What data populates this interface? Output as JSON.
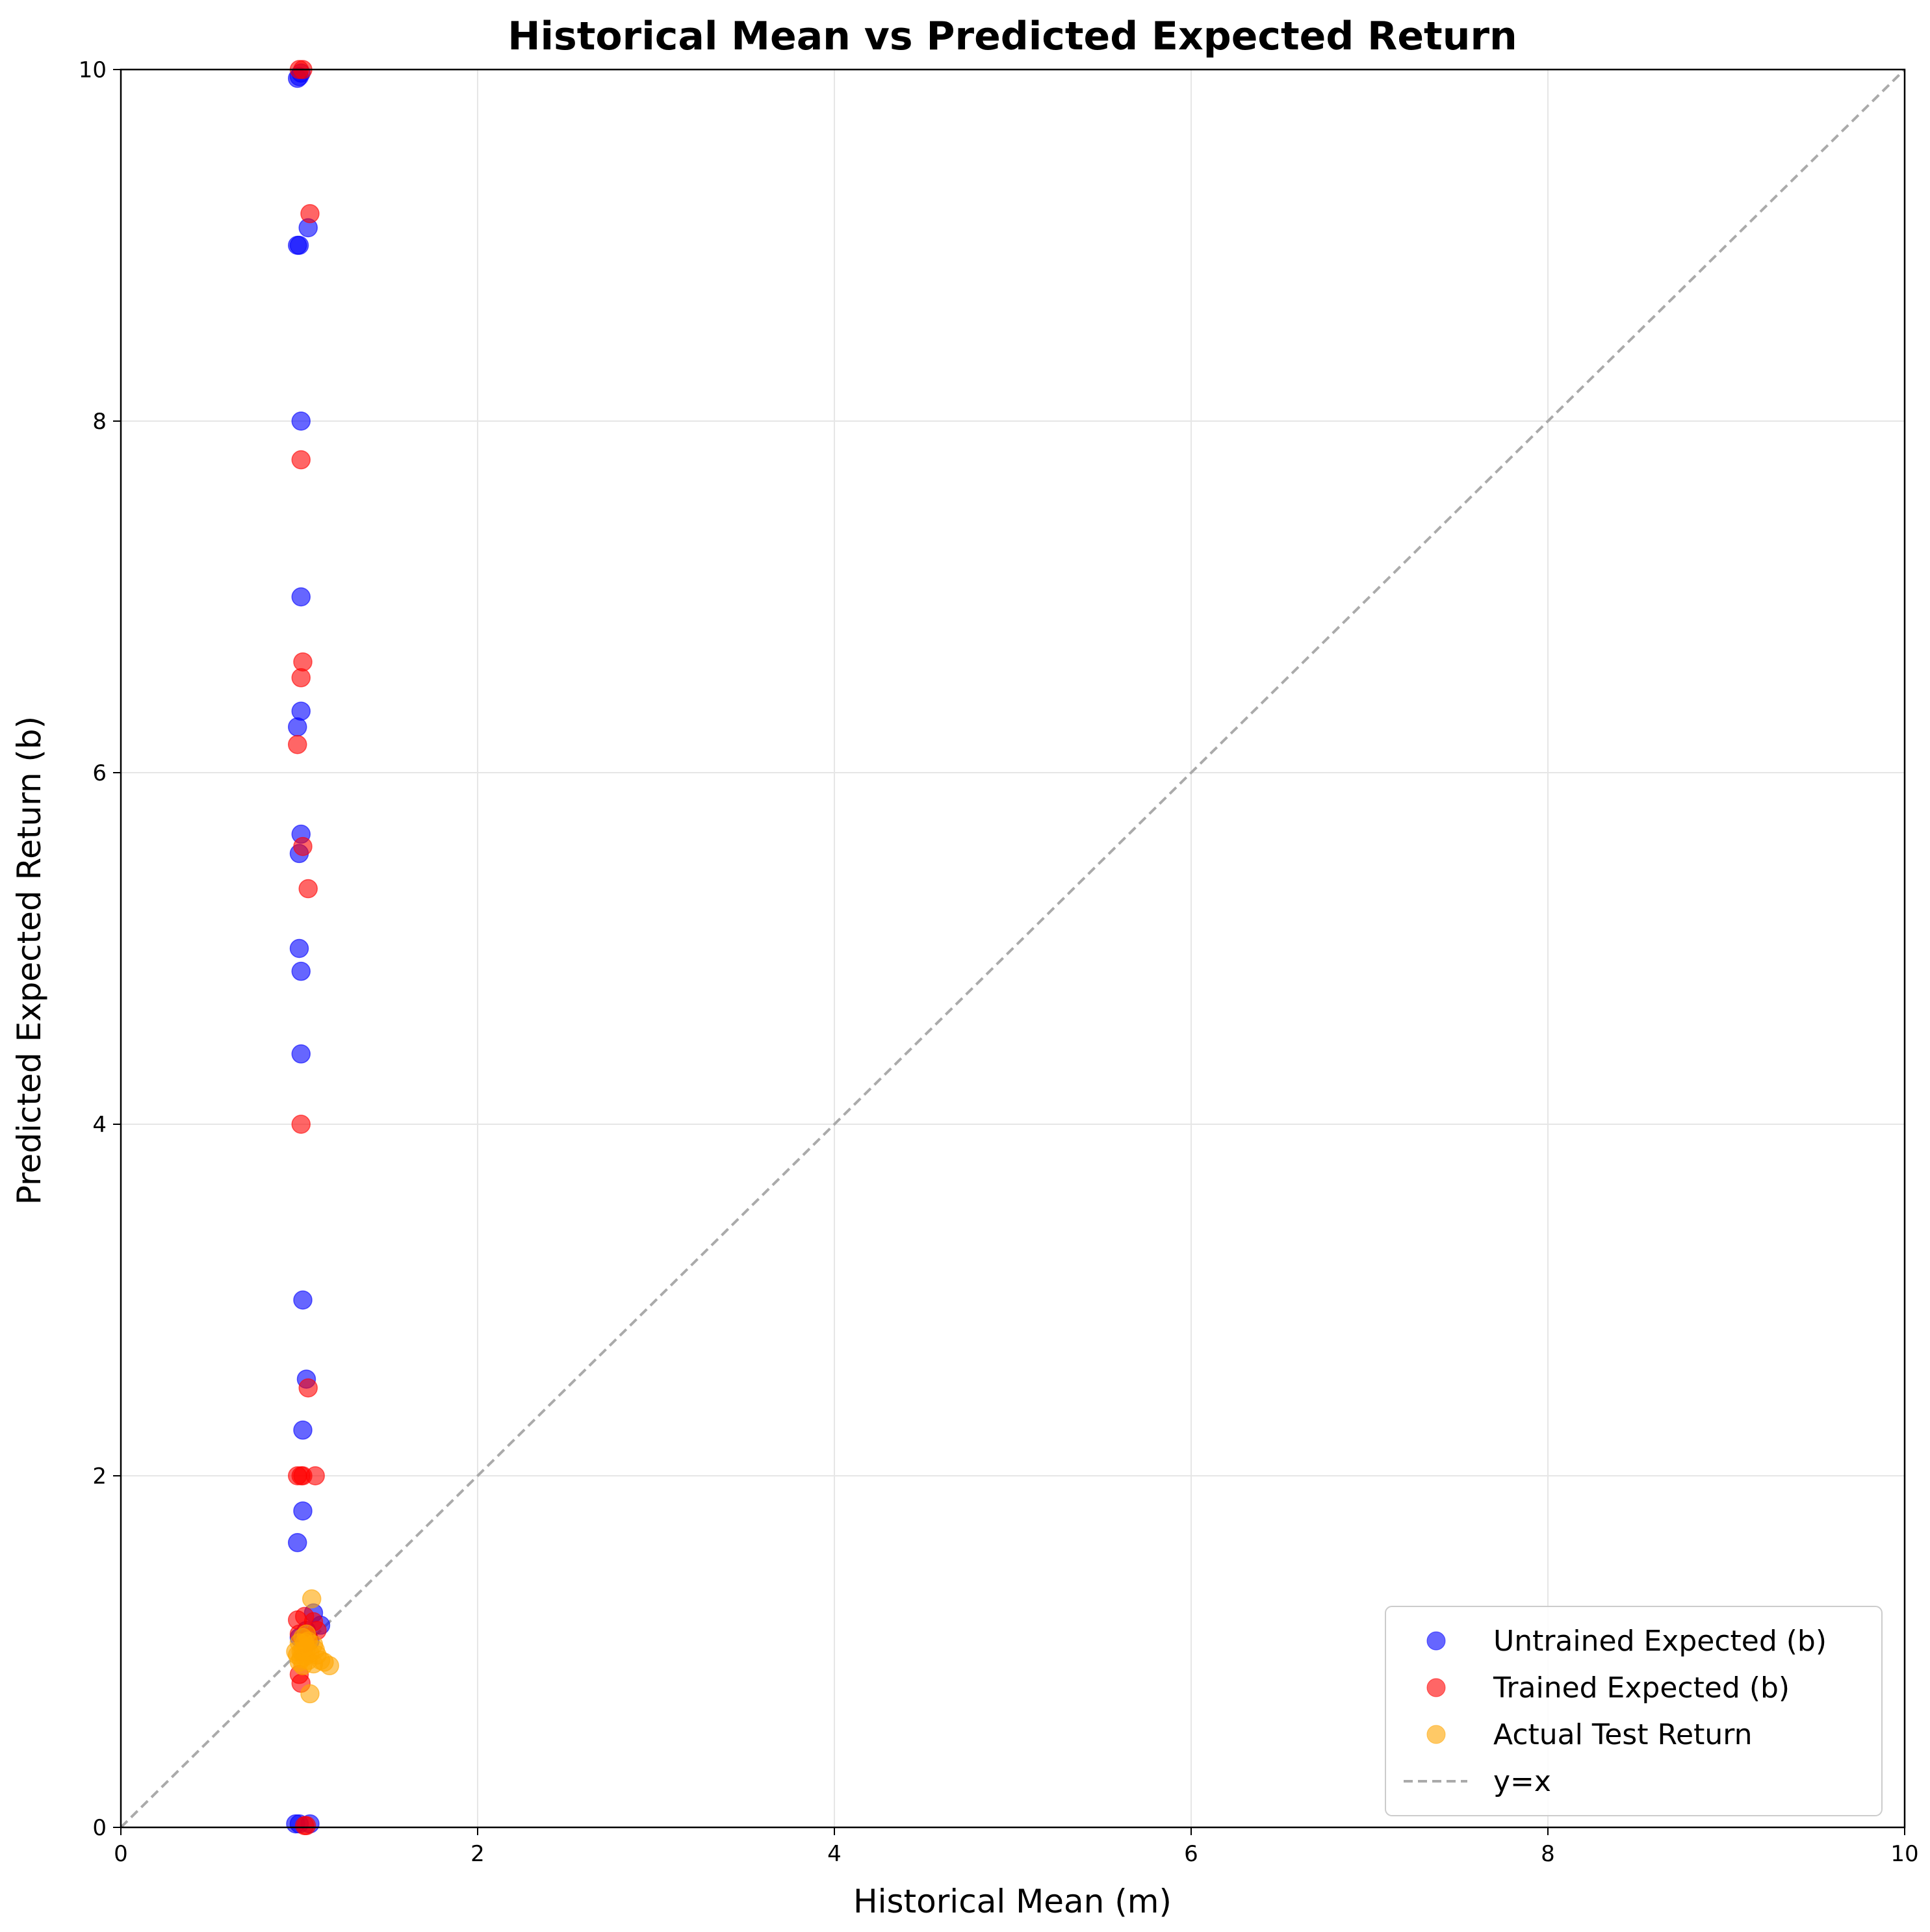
{
  "chart_data": {
    "type": "scatter",
    "title": "Historical Mean vs Predicted Expected Return",
    "xlabel": "Historical Mean (m)",
    "ylabel": "Predicted Expected Return (b)",
    "xlim": [
      0,
      10
    ],
    "ylim": [
      0,
      10
    ],
    "xticks": [
      0,
      2,
      4,
      6,
      8,
      10
    ],
    "yticks": [
      0,
      2,
      4,
      6,
      8,
      10
    ],
    "grid": true,
    "legend_position": "lower-right",
    "reference_line": {
      "name": "y=x",
      "style": "dashed",
      "color": "#aaaaaa",
      "x": [
        0,
        10
      ],
      "y": [
        0,
        10
      ]
    },
    "series": [
      {
        "name": "Untrained Expected (b)",
        "color": "#0000ff",
        "points": [
          [
            0.99,
            9.95
          ],
          [
            1.0,
            9.96
          ],
          [
            1.01,
            9.98
          ],
          [
            0.99,
            9.0
          ],
          [
            1.0,
            9.0
          ],
          [
            1.05,
            9.1
          ],
          [
            1.01,
            8.0
          ],
          [
            1.01,
            7.0
          ],
          [
            1.01,
            6.35
          ],
          [
            0.99,
            6.26
          ],
          [
            1.01,
            5.65
          ],
          [
            1.0,
            5.54
          ],
          [
            1.0,
            5.0
          ],
          [
            1.01,
            4.87
          ],
          [
            1.01,
            4.4
          ],
          [
            1.02,
            3.0
          ],
          [
            1.04,
            2.55
          ],
          [
            1.02,
            2.26
          ],
          [
            1.02,
            1.8
          ],
          [
            0.99,
            1.62
          ],
          [
            1.08,
            1.22
          ],
          [
            1.12,
            1.15
          ],
          [
            1.04,
            1.12
          ],
          [
            1.0,
            1.08
          ],
          [
            1.06,
            1.06
          ],
          [
            0.98,
            0.02
          ],
          [
            1.0,
            0.02
          ],
          [
            1.06,
            0.02
          ]
        ]
      },
      {
        "name": "Trained Expected (b)",
        "color": "#ff0000",
        "points": [
          [
            1.02,
            10.0
          ],
          [
            1.0,
            10.0
          ],
          [
            1.06,
            9.18
          ],
          [
            1.01,
            7.78
          ],
          [
            1.02,
            6.63
          ],
          [
            1.01,
            6.54
          ],
          [
            0.99,
            6.16
          ],
          [
            1.02,
            5.58
          ],
          [
            1.05,
            5.34
          ],
          [
            1.01,
            4.0
          ],
          [
            1.05,
            2.5
          ],
          [
            0.99,
            2.0
          ],
          [
            1.01,
            2.0
          ],
          [
            1.02,
            2.0
          ],
          [
            1.09,
            2.0
          ],
          [
            0.99,
            1.18
          ],
          [
            1.03,
            1.2
          ],
          [
            1.08,
            1.17
          ],
          [
            1.1,
            1.12
          ],
          [
            1.0,
            1.1
          ],
          [
            1.05,
            1.08
          ],
          [
            1.01,
            0.82
          ],
          [
            1.0,
            0.87
          ],
          [
            1.03,
            0.01
          ],
          [
            1.04,
            0.01
          ]
        ]
      },
      {
        "name": "Actual Test Return",
        "color": "#ffa500",
        "points": [
          [
            1.07,
            1.3
          ],
          [
            1.0,
            1.05
          ],
          [
            1.02,
            1.08
          ],
          [
            1.04,
            1.02
          ],
          [
            0.99,
            0.98
          ],
          [
            1.01,
            1.0
          ],
          [
            1.03,
            0.97
          ],
          [
            1.05,
            0.95
          ],
          [
            1.08,
            1.04
          ],
          [
            1.1,
            0.98
          ],
          [
            1.02,
            0.92
          ],
          [
            1.0,
            0.94
          ],
          [
            1.04,
            1.1
          ],
          [
            1.06,
            0.99
          ],
          [
            1.09,
            1.01
          ],
          [
            1.12,
            0.95
          ],
          [
            1.17,
            0.92
          ],
          [
            1.06,
            0.76
          ],
          [
            1.03,
            1.05
          ],
          [
            1.01,
            0.96
          ],
          [
            0.98,
            1.0
          ],
          [
            1.05,
            1.06
          ],
          [
            1.08,
            0.93
          ],
          [
            1.02,
            1.0
          ],
          [
            1.14,
            0.94
          ]
        ]
      }
    ]
  }
}
